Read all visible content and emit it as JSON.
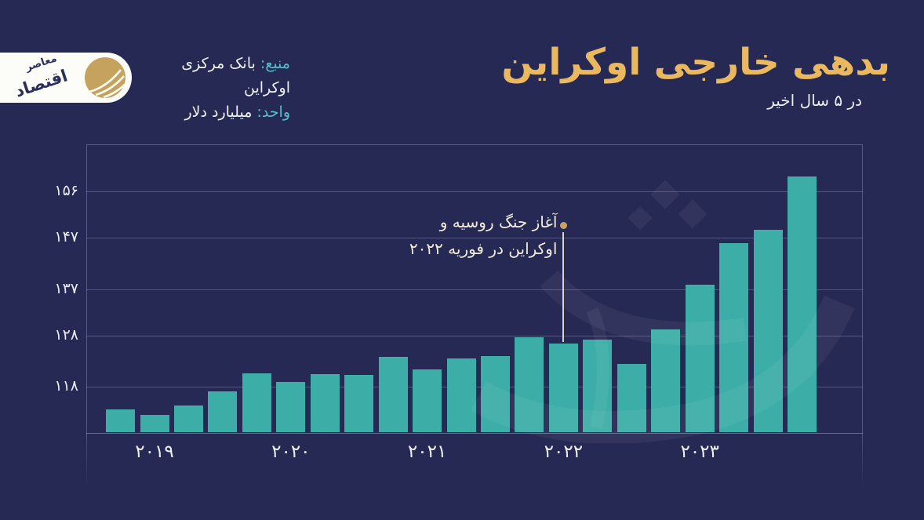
{
  "logo": {
    "word1": "اقتصاد",
    "word2": "معاصر",
    "alt": "اقتصاد معاصر"
  },
  "header": {
    "title": "بدهی خارجی اوکراین",
    "subtitle": "در ۵ سال اخیر",
    "source_label": "منبع:",
    "source_value": "بانک مرکزی اوکراین",
    "unit_label": "واحد:",
    "unit_value": "میلیارد دلار"
  },
  "colors": {
    "background": "#272955",
    "bar": "#3dada7",
    "title_gold": "#e9b85f",
    "label_teal": "#57bec9",
    "text_white": "#f1f2f7",
    "annotation_dot_gold": "#c9a263",
    "logo_gold": "#c5a25e",
    "gridline": "rgba(198,203,240,0.3)"
  },
  "chart_data": {
    "type": "bar",
    "title": "بدهی خارجی اوکراین",
    "subtitle": "در ۵ سال اخیر",
    "unit": "میلیارد دلار",
    "source": "بانک مرکزی اوکراین",
    "categories": [
      "2019-Q1",
      "2019-Q2",
      "2019-Q3",
      "2019-Q4",
      "2020-Q1",
      "2020-Q2",
      "2020-Q3",
      "2020-Q4",
      "2021-Q1",
      "2021-Q2",
      "2021-Q3",
      "2021-Q4",
      "2022-Q1",
      "2022-Q2",
      "2022-Q3",
      "2022-Q4",
      "2023-Q1",
      "2023-Q2",
      "2023-Q3",
      "2023-Q4",
      "2024-Q1"
    ],
    "values": [
      113.4,
      112.4,
      114.2,
      116.9,
      120.4,
      118.8,
      120.3,
      120.1,
      123.7,
      121.2,
      123.4,
      123.8,
      127.5,
      126.3,
      127.0,
      122.3,
      129.0,
      137.7,
      145.8,
      148.4,
      158.8
    ],
    "ylim": [
      109,
      165
    ],
    "grid": true,
    "yticks": [
      {
        "value": 118,
        "label": "۱۱۸"
      },
      {
        "value": 128,
        "label": "۱۲۸"
      },
      {
        "value": 137,
        "label": "۱۳۷"
      },
      {
        "value": 147,
        "label": "۱۴۷"
      },
      {
        "value": 156,
        "label": "۱۵۶"
      }
    ],
    "xticks": [
      {
        "label": "۲۰۱۹",
        "bar_index": 1
      },
      {
        "label": "۲۰۲۰",
        "bar_index": 5
      },
      {
        "label": "۲۰۲۱",
        "bar_index": 9
      },
      {
        "label": "۲۰۲۲",
        "bar_index": 13
      },
      {
        "label": "۲۰۲۳",
        "bar_index": 17
      }
    ],
    "annotation": {
      "line1": "آغاز جنگ روسیه و",
      "line2": "اوکراین در فوریه ۲۰۲۲",
      "target_bar_index": 13
    }
  }
}
